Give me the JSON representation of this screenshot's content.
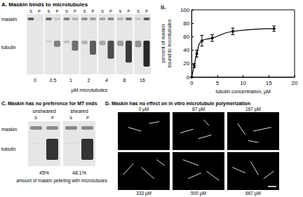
{
  "panel_a": {
    "letter": "A.",
    "title": "Maskin binds to microtubules",
    "row_labels": [
      "maskin",
      "tubulin"
    ],
    "lane_labels": [
      "S",
      "P"
    ],
    "concentrations": [
      0,
      0.5,
      1,
      2,
      4,
      8,
      16
    ],
    "axis_label": "µM microtubules"
  },
  "chart_data": {
    "type": "line",
    "letter": "B.",
    "x_label": "tubulin concentration, µM",
    "y_label": "percent of maskin\nbound to microtubules",
    "x": [
      0,
      0.5,
      1,
      2,
      4,
      8,
      16
    ],
    "values": [
      0,
      17,
      35,
      54,
      58,
      68,
      72
    ],
    "errors": [
      0,
      3,
      5,
      8,
      5,
      5,
      4
    ],
    "color": "#000000",
    "marker": "circle",
    "xlim": [
      0,
      20
    ],
    "xticks": [
      0,
      5,
      10,
      15,
      20
    ],
    "ylim": [
      0,
      100
    ],
    "yticks": [
      0,
      20,
      40,
      60,
      80,
      100
    ],
    "grid": false
  },
  "panel_c": {
    "letter": "C.",
    "title": "Maskin has no preference for MT ends",
    "groups": [
      "unsheared",
      "sheared"
    ],
    "lane_labels": [
      "S",
      "P"
    ],
    "row_labels": [
      "maskin",
      "tubulin"
    ],
    "percentages": [
      "45%",
      "48.1%"
    ],
    "caption": "amount of maskin pelleting with microtubules"
  },
  "panel_d": {
    "letter": "D.",
    "title": "Maskin has no effect on in vitro microtubule polymerization",
    "image_labels": [
      "0 µM",
      "67 µM",
      "167 µM",
      "333 µM",
      "500 µM",
      "667 µM"
    ]
  }
}
